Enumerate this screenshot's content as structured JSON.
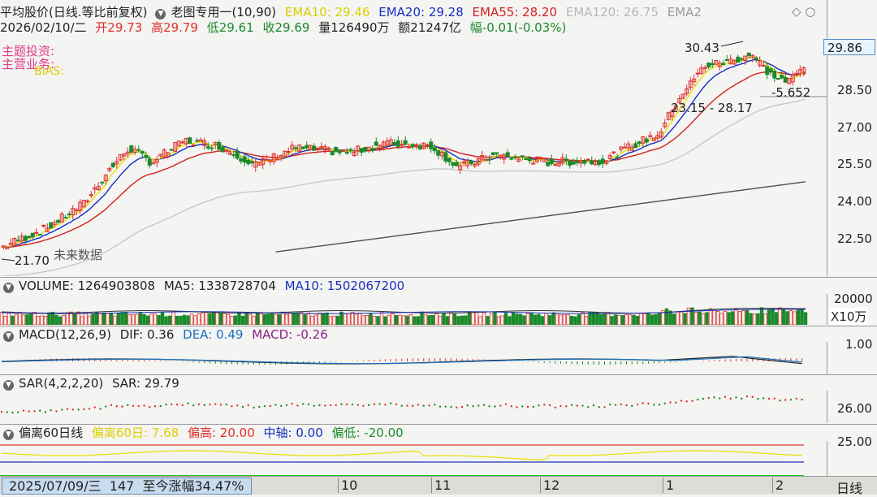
{
  "main_header": {
    "title": "平均股价(日线.等比前复权)",
    "template": "老图专用一(10,90)",
    "ema10": "EMA10: 29.46",
    "ema20": "EMA20: 29.28",
    "ema55": "EMA55: 28.20",
    "ema120": "EMA120: 26.75",
    "ema_more": "EMA2"
  },
  "quote_line": {
    "date": "2026/02/10/二",
    "open": "开29.73",
    "high": "高29.79",
    "low": "低29.61",
    "close": "收29.69",
    "volume": "量126490万",
    "amount": "额21247亿",
    "change": "幅-0.01(-0.03%)"
  },
  "overlay_labels": {
    "theme": "主题投资:",
    "business": "主营业务:",
    "bias": "BIAS:",
    "future": "未来数据"
  },
  "annotations": {
    "high": "30.43",
    "low": "21.70",
    "range": "23.15 - 28.17",
    "pct": "-5.652"
  },
  "price_axis": {
    "ticks": [
      "28.50",
      "27.00",
      "25.50",
      "24.00",
      "22.50"
    ],
    "current": "29.86"
  },
  "volume_header": {
    "title": "VOLUME: 1264903808",
    "ma5": "MA5: 1338728704",
    "ma10": "MA10: 1502067200"
  },
  "volume_axis": {
    "tick": "20000",
    "unit": "X10万"
  },
  "macd_header": {
    "title": "MACD(12,26,9)",
    "dif": "DIF: 0.36",
    "dea": "DEA: 0.49",
    "macd": "MACD: -0.26"
  },
  "macd_axis": {
    "tick": "1.00"
  },
  "sar_header": {
    "title": "SAR(4,2,2,20)",
    "sar": "SAR: 29.79"
  },
  "sar_axis": {
    "tick": "26.00"
  },
  "bias_header": {
    "title": "偏离60日线",
    "bias60": "偏离60日: 7.68",
    "high": "偏高: 20.00",
    "mid": "中轴: 0.00",
    "low": "偏低: -20.00"
  },
  "bias_axis": {
    "tick": "25.00"
  },
  "bottom_bar": {
    "info": "2025/07/09/三  147  至今涨幅34.47%",
    "months": [
      "10",
      "11",
      "12",
      "1",
      "2"
    ],
    "period": "日线"
  },
  "colors": {
    "up": "#e0302c",
    "down": "#1a8a2a",
    "ema10": "#e8e000",
    "ema20": "#1830c0",
    "ema55": "#d42020",
    "ema120": "#c8c8c8",
    "ema250": "#505050"
  },
  "chart_data": {
    "type": "candlestick",
    "price_series": {
      "first": 22.2,
      "high": 30.43,
      "low": 21.7,
      "last_close": 29.69,
      "ema10": 29.46,
      "ema20": 29.28,
      "ema55": 28.2,
      "ema120": 26.75
    }
  }
}
